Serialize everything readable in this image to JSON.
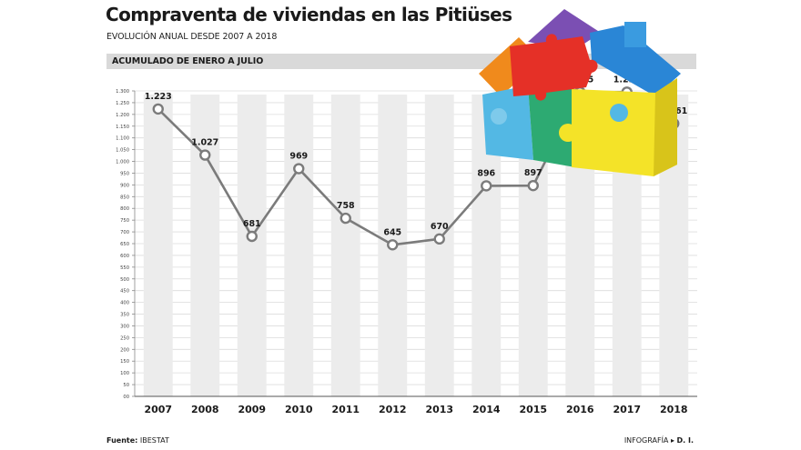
{
  "header": {
    "title": "Compraventa de viviendas en las Pitiüses",
    "subtitle": "EVOLUCIÓN ANUAL DESDE 2007 A 2018",
    "section": "ACUMULADO DE ENERO A JULIO"
  },
  "footer": {
    "source_label": "Fuente:",
    "source": "IBESTAT",
    "credit_label": "INFOGRAFÍA",
    "credit": "D. I."
  },
  "colors": {
    "line": "#7b7b7b",
    "marker_fill": "#ffffff",
    "column": "#ececec",
    "grid": "#dcdcdc",
    "header_band": "#d9d9d9"
  },
  "chart_data": {
    "type": "line",
    "title": "Compraventa de viviendas en las Pitiüses",
    "subtitle": "EVOLUCIÓN ANUAL DESDE 2007 A 2018",
    "categories": [
      "2007",
      "2008",
      "2009",
      "2010",
      "2011",
      "2012",
      "2013",
      "2014",
      "2015",
      "2016",
      "2017",
      "2018"
    ],
    "series": [
      {
        "values": [
          1223,
          1027,
          681,
          969,
          758,
          645,
          670,
          896,
          897,
          1295,
          1295,
          1161
        ]
      }
    ],
    "data_labels": [
      "1.223",
      "1.027",
      "681",
      "969",
      "758",
      "645",
      "670",
      "896",
      "897",
      "1.295",
      "1.295",
      "1.161"
    ],
    "ylim": [
      0,
      1300
    ],
    "yticks": [
      0,
      50,
      100,
      150,
      200,
      250,
      300,
      350,
      400,
      450,
      500,
      550,
      600,
      650,
      700,
      750,
      800,
      850,
      900,
      950,
      1000,
      1050,
      1100,
      1150,
      1200,
      1250,
      1300
    ],
    "ytick_labels": [
      "00",
      "50",
      "100",
      "150",
      "200",
      "250",
      "300",
      "350",
      "400",
      "450",
      "500",
      "550",
      "600",
      "650",
      "700",
      "750",
      "800",
      "850",
      "900",
      "950",
      "1.000",
      "1.050",
      "1.100",
      "1.150",
      "1.200",
      "1.250",
      "1.300"
    ],
    "grid": true,
    "legend": "none"
  }
}
